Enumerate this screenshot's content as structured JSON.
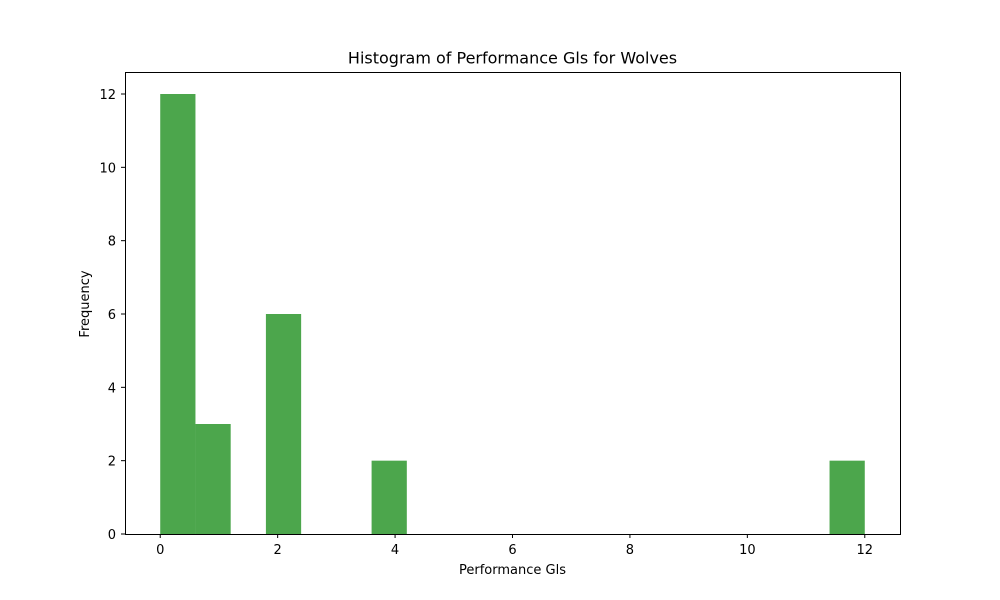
{
  "chart_data": {
    "type": "bar",
    "subtype": "histogram",
    "title": "Histogram of Performance Gls for Wolves",
    "xlabel": "Performance Gls",
    "ylabel": "Frequency",
    "bin_width": 0.6,
    "bins": [
      {
        "start": 0.0,
        "end": 0.6,
        "count": 12
      },
      {
        "start": 0.6,
        "end": 1.2,
        "count": 3
      },
      {
        "start": 1.8,
        "end": 2.4,
        "count": 6
      },
      {
        "start": 3.6,
        "end": 4.2,
        "count": 2
      },
      {
        "start": 11.4,
        "end": 12.0,
        "count": 2
      }
    ],
    "xlim": [
      -0.6,
      12.6
    ],
    "ylim": [
      0,
      12.6
    ],
    "xticks": [
      "0",
      "2",
      "4",
      "6",
      "8",
      "10",
      "12"
    ],
    "yticks": [
      "0",
      "2",
      "4",
      "6",
      "8",
      "10",
      "12"
    ],
    "bar_color": "#4ca64c",
    "grid": false,
    "legend": "none"
  }
}
